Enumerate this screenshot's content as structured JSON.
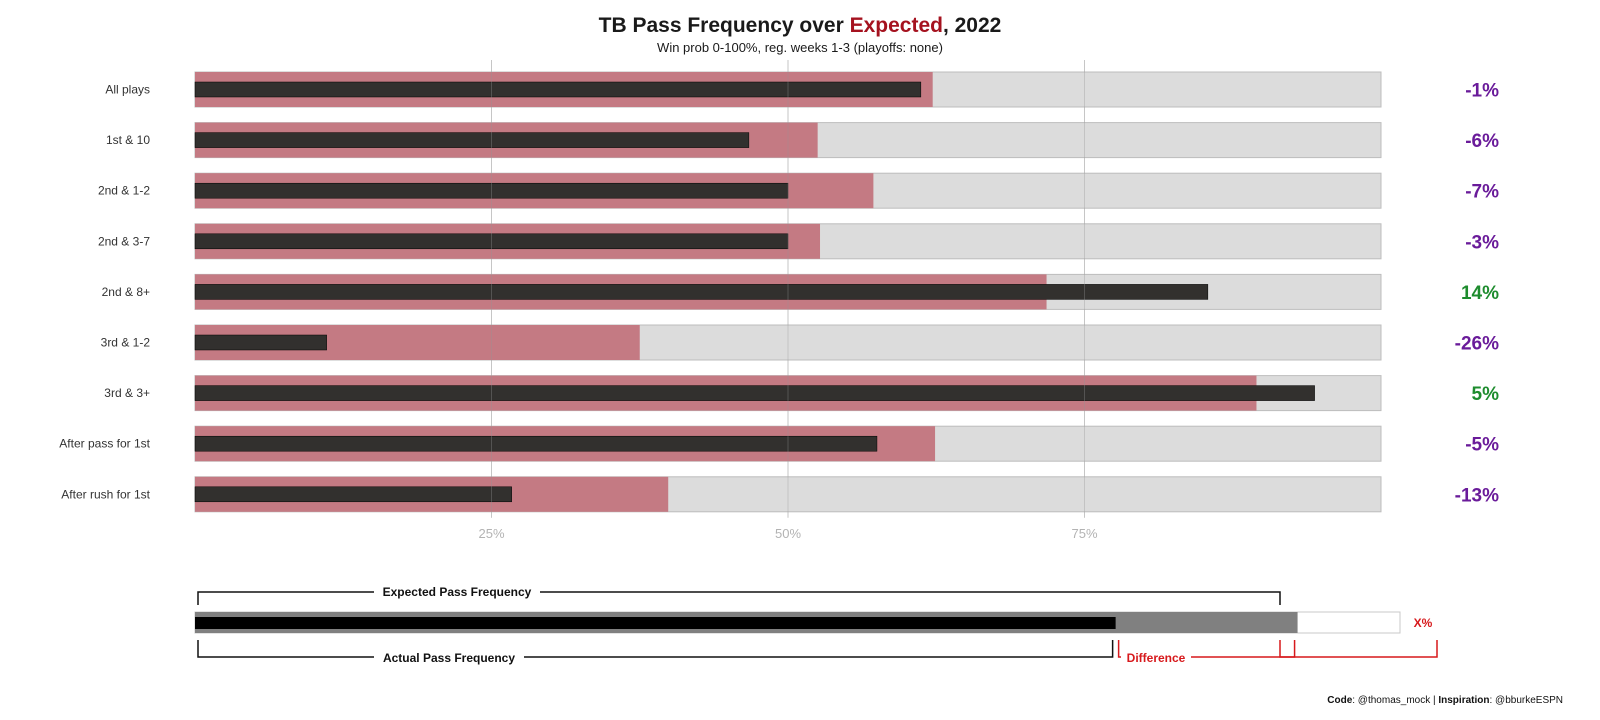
{
  "title": {
    "prefix": "TB Pass Frequency over ",
    "highlight": "Expected",
    "suffix": ", 2022",
    "subtitle": "Win prob 0-100%, reg. weeks 1-3 (playoffs: none)"
  },
  "colors": {
    "expected_bar": "#c47a83",
    "actual_bar": "#32302e",
    "background_bar": "#dcdcdc",
    "negative_label": "#6a1b9a",
    "positive_label": "#1e8c2e",
    "highlight": "#a5121f"
  },
  "chart_data": {
    "type": "bar",
    "orientation": "horizontal",
    "title": "TB Pass Frequency over Expected, 2022",
    "subtitle": "Win prob 0-100%, reg. weeks 1-3 (playoffs: none)",
    "xlim": [
      0,
      100
    ],
    "x_ticks": [
      25,
      50,
      75
    ],
    "x_tick_labels": [
      "25%",
      "50%",
      "75%"
    ],
    "categories": [
      "All plays",
      "1st & 10",
      "2nd & 1-2",
      "2nd & 3-7",
      "2nd & 8+",
      "3rd & 1-2",
      "3rd & 3+",
      "After pass for 1st",
      "After rush for 1st"
    ],
    "series": [
      {
        "name": "Expected Pass Frequency",
        "values": [
          62.2,
          52.5,
          57.2,
          52.7,
          71.8,
          37.5,
          89.5,
          62.4,
          39.9
        ]
      },
      {
        "name": "Actual Pass Frequency",
        "values": [
          61.2,
          46.7,
          50.0,
          50.0,
          85.4,
          11.1,
          94.4,
          57.5,
          26.7
        ]
      }
    ],
    "difference_labels": [
      "-1%",
      "-6%",
      "-7%",
      "-3%",
      "14%",
      "-26%",
      "5%",
      "-5%",
      "-13%"
    ]
  },
  "legend": {
    "expected_label": "Expected Pass Frequency",
    "actual_label": "Actual Pass Frequency",
    "difference_label": "Difference",
    "value_label": "X%",
    "actual_value": 76.4,
    "expected_value": 91.5
  },
  "caption": {
    "code_label": "Code",
    "code_value": ": @thomas_mock | ",
    "inspiration_label": "Inspiration",
    "inspiration_value": ": @bburkeESPN"
  }
}
